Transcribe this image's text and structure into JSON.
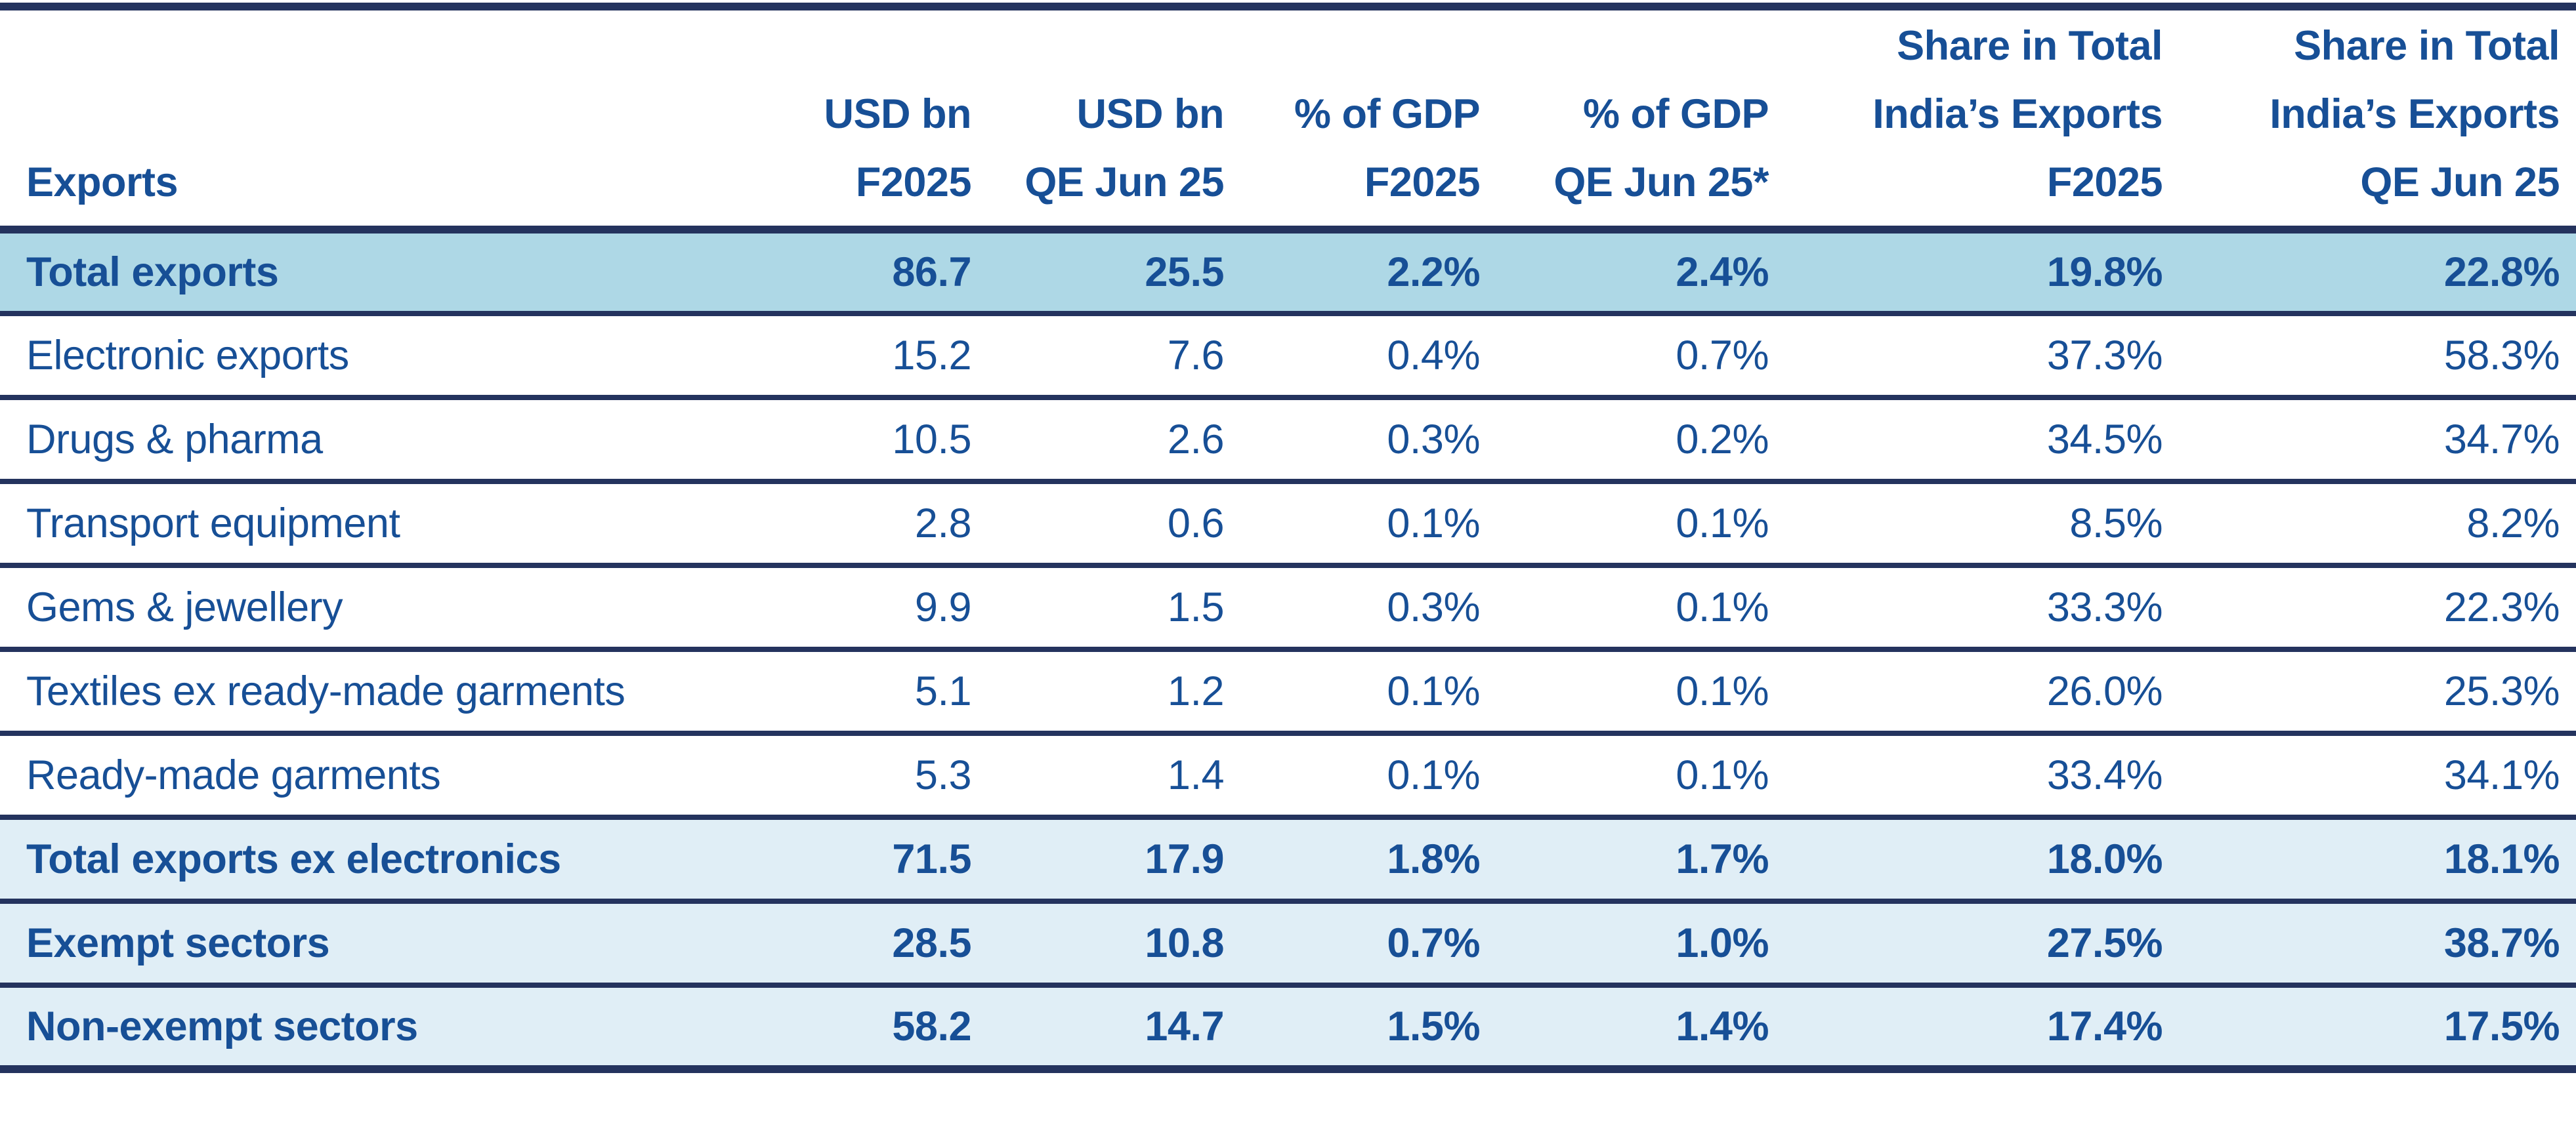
{
  "table": {
    "row_header_label": "Exports",
    "column_groups": [
      {
        "id": "usd-bn-f2025",
        "lines": [
          "USD bn",
          "F2025"
        ]
      },
      {
        "id": "usd-bn-qe-jun-25",
        "lines": [
          "USD bn",
          "QE Jun 25"
        ]
      },
      {
        "id": "pct-gdp-f2025",
        "lines": [
          "% of GDP",
          "F2025"
        ]
      },
      {
        "id": "pct-gdp-qe-jun-25",
        "lines": [
          "% of GDP",
          "QE Jun 25*"
        ]
      },
      {
        "id": "share-exports-f2025",
        "lines": [
          "Share in Total",
          "India’s Exports",
          "F2025"
        ]
      },
      {
        "id": "share-exports-qe-jun25",
        "lines": [
          "Share in Total",
          "India’s Exports",
          "QE Jun 25"
        ]
      }
    ],
    "rows": [
      {
        "label": "Total exports",
        "emphasis": "strong",
        "values": [
          "86.7",
          "25.5",
          "2.2%",
          "2.4%",
          "19.8%",
          "22.8%"
        ]
      },
      {
        "label": "Electronic exports",
        "emphasis": "none",
        "values": [
          "15.2",
          "7.6",
          "0.4%",
          "0.7%",
          "37.3%",
          "58.3%"
        ]
      },
      {
        "label": "Drugs & pharma",
        "emphasis": "none",
        "values": [
          "10.5",
          "2.6",
          "0.3%",
          "0.2%",
          "34.5%",
          "34.7%"
        ]
      },
      {
        "label": "Transport equipment",
        "emphasis": "none",
        "values": [
          "2.8",
          "0.6",
          "0.1%",
          "0.1%",
          "8.5%",
          "8.2%"
        ]
      },
      {
        "label": "Gems & jewellery",
        "emphasis": "none",
        "values": [
          "9.9",
          "1.5",
          "0.3%",
          "0.1%",
          "33.3%",
          "22.3%"
        ]
      },
      {
        "label": "Textiles ex ready-made garments",
        "emphasis": "none",
        "values": [
          "5.1",
          "1.2",
          "0.1%",
          "0.1%",
          "26.0%",
          "25.3%"
        ]
      },
      {
        "label": "Ready-made garments",
        "emphasis": "none",
        "values": [
          "5.3",
          "1.4",
          "0.1%",
          "0.1%",
          "33.4%",
          "34.1%"
        ]
      },
      {
        "label": "Total exports ex electronics",
        "emphasis": "subtotal",
        "values": [
          "71.5",
          "17.9",
          "1.8%",
          "1.7%",
          "18.0%",
          "18.1%"
        ]
      },
      {
        "label": "Exempt sectors",
        "emphasis": "subtotal",
        "values": [
          "28.5",
          "10.8",
          "0.7%",
          "1.0%",
          "27.5%",
          "38.7%"
        ]
      },
      {
        "label": "Non-exempt sectors",
        "emphasis": "subtotal",
        "values": [
          "58.2",
          "14.7",
          "1.5%",
          "1.4%",
          "17.4%",
          "17.5%"
        ]
      }
    ],
    "colors": {
      "rule_navy": "#24335e",
      "text_blue": "#174f96",
      "highlight_strong": "#aed8e6",
      "highlight_subtle": "#e0eef6",
      "background": "#ffffff"
    }
  },
  "chart_data": {
    "type": "table",
    "title": "",
    "columns": [
      "Exports",
      "USD bn F2025",
      "USD bn QE Jun 25",
      "% of GDP F2025",
      "% of GDP QE Jun 25*",
      "Share in Total India’s Exports F2025",
      "Share in Total India’s Exports QE Jun 25"
    ],
    "rows": [
      [
        "Total exports",
        86.7,
        25.5,
        "2.2%",
        "2.4%",
        "19.8%",
        "22.8%"
      ],
      [
        "Electronic exports",
        15.2,
        7.6,
        "0.4%",
        "0.7%",
        "37.3%",
        "58.3%"
      ],
      [
        "Drugs & pharma",
        10.5,
        2.6,
        "0.3%",
        "0.2%",
        "34.5%",
        "34.7%"
      ],
      [
        "Transport equipment",
        2.8,
        0.6,
        "0.1%",
        "0.1%",
        "8.5%",
        "8.2%"
      ],
      [
        "Gems & jewellery",
        9.9,
        1.5,
        "0.3%",
        "0.1%",
        "33.3%",
        "22.3%"
      ],
      [
        "Textiles ex ready-made garments",
        5.1,
        1.2,
        "0.1%",
        "0.1%",
        "26.0%",
        "25.3%"
      ],
      [
        "Ready-made garments",
        5.3,
        1.4,
        "0.1%",
        "0.1%",
        "33.4%",
        "34.1%"
      ],
      [
        "Total exports ex electronics",
        71.5,
        17.9,
        "1.8%",
        "1.7%",
        "18.0%",
        "18.1%"
      ],
      [
        "Exempt sectors",
        28.5,
        10.8,
        "0.7%",
        "1.0%",
        "27.5%",
        "38.7%"
      ],
      [
        "Non-exempt sectors",
        58.2,
        14.7,
        "1.5%",
        "1.4%",
        "17.4%",
        "17.5%"
      ]
    ],
    "highlighted_rows": [
      "Total exports",
      "Total exports ex electronics",
      "Exempt sectors",
      "Non-exempt sectors"
    ],
    "legend_position": "none",
    "grid": "horizontal-rules"
  }
}
